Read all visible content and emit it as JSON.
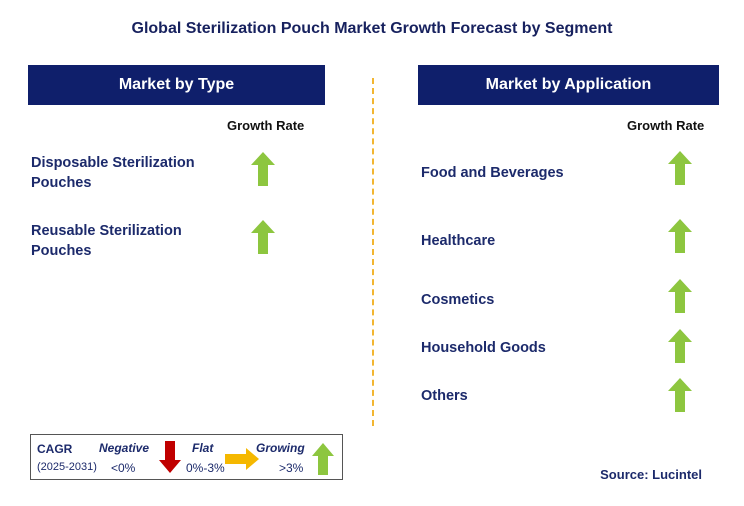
{
  "title": "Global Sterilization Pouch Market Growth Forecast by Segment",
  "left_panel": {
    "header": "Market by Type",
    "growth_rate_label": "Growth Rate",
    "items": [
      {
        "line1": "Disposable Sterilization",
        "line2": "Pouches",
        "trend": "growing"
      },
      {
        "line1": "Reusable Sterilization",
        "line2": "Pouches",
        "trend": "growing"
      }
    ]
  },
  "right_panel": {
    "header": "Market by Application",
    "growth_rate_label": "Growth Rate",
    "items": [
      {
        "label": "Food and Beverages",
        "trend": "growing"
      },
      {
        "label": "Healthcare",
        "trend": "growing"
      },
      {
        "label": "Cosmetics",
        "trend": "growing"
      },
      {
        "label": "Household Goods",
        "trend": "growing"
      },
      {
        "label": "Others",
        "trend": "growing"
      }
    ]
  },
  "legend": {
    "cagr_label": "CAGR",
    "period": "(2025-2031)",
    "negative_label": "Negative",
    "negative_range": "<0%",
    "flat_label": "Flat",
    "flat_range": "0%-3%",
    "growing_label": "Growing",
    "growing_range": ">3%"
  },
  "source": "Source: Lucintel",
  "colors": {
    "header_bg": "#0f1f6b",
    "growing_arrow": "#8dc63f",
    "negative_arrow": "#c00000",
    "flat_arrow": "#f5b800",
    "divider": "#f2b632"
  }
}
